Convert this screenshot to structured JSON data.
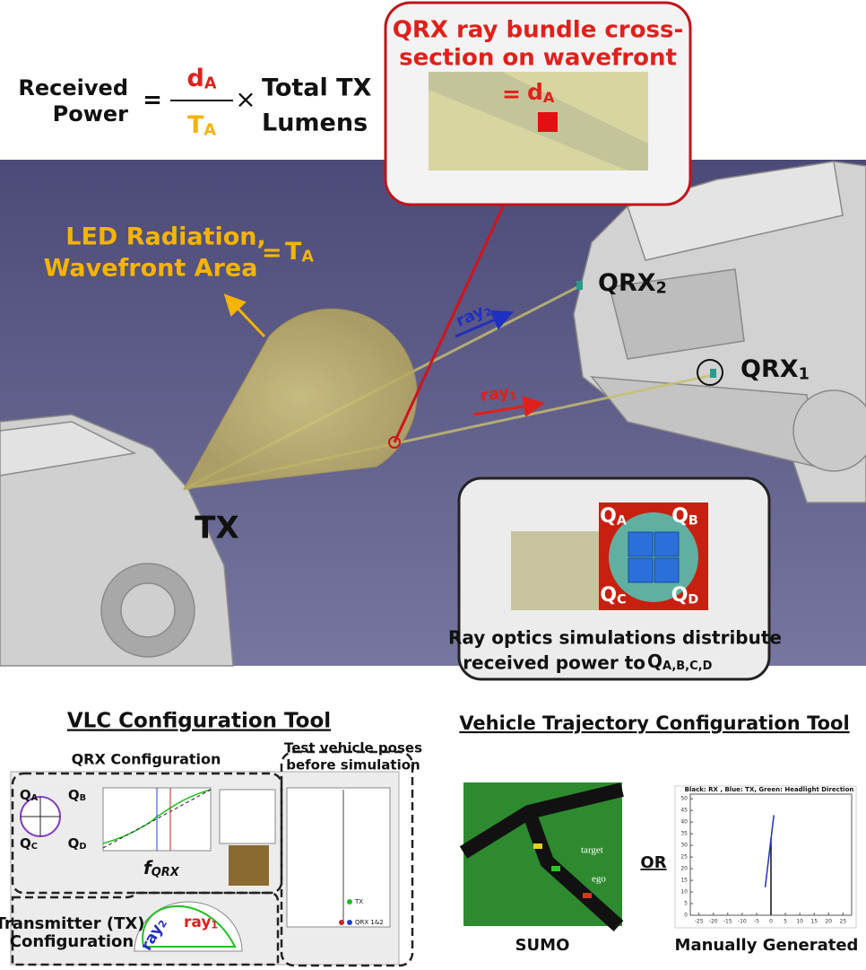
{
  "formula": {
    "lhs": [
      "Received",
      "Power"
    ],
    "equals": "=",
    "numerator": {
      "main": "d",
      "sub": "A"
    },
    "denominator": {
      "main": "T",
      "sub": "A"
    },
    "times": "×",
    "rhs": [
      "Total TX",
      "Lumens"
    ]
  },
  "callout": {
    "title": [
      "QRX ray bundle cross-",
      "section on wavefront"
    ],
    "equals": "= ",
    "label": {
      "main": "d",
      "sub": "A"
    }
  },
  "scene": {
    "led_label": [
      "LED Radiation,",
      "Wavefront Area"
    ],
    "led_equals": "= ",
    "led_symbol": {
      "main": "T",
      "sub": "A"
    },
    "qrx2": {
      "main": "QRX",
      "sub": "2"
    },
    "qrx1": {
      "main": "QRX",
      "sub": "1"
    },
    "ray2": {
      "main": "ray",
      "sub": "2"
    },
    "ray1": {
      "main": "ray",
      "sub": "1"
    },
    "tx": "TX"
  },
  "inset": {
    "quadrants": [
      {
        "main": "Q",
        "sub": "A"
      },
      {
        "main": "Q",
        "sub": "B"
      },
      {
        "main": "Q",
        "sub": "C"
      },
      {
        "main": "Q",
        "sub": "D"
      }
    ],
    "caption": [
      "Ray optics simulations distribute",
      "received power to "
    ],
    "caption_symbol": {
      "main": "Q",
      "sub": "A,B,C,D"
    }
  },
  "vlc_tool": {
    "title": "VLC Configuration Tool",
    "qrx_label": "QRX Configuration",
    "poses_label": [
      "Test vehicle poses",
      "before simulation"
    ],
    "tx_label": [
      "Transmitter (TX)",
      "Configuration"
    ],
    "fqrx": {
      "main": "f",
      "sub": "QRX"
    },
    "quadrants": [
      {
        "main": "Q",
        "sub": "A"
      },
      {
        "main": "Q",
        "sub": "B"
      },
      {
        "main": "Q",
        "sub": "C"
      },
      {
        "main": "Q",
        "sub": "D"
      }
    ],
    "ray1": {
      "main": "ray",
      "sub": "1"
    },
    "ray2": {
      "main": "ray",
      "sub": "2"
    },
    "pose_tags": [
      "TX",
      "QRX 1&2"
    ]
  },
  "trajectory_tool": {
    "title": "Vehicle Trajectory Configuration Tool",
    "sumo_label": "SUMO",
    "or": "OR",
    "manual_label": "Manually Generated",
    "sumo_tags": [
      "target",
      "ego"
    ],
    "plot": {
      "title": "Black: RX , Blue: TX, Green: Headlight Direction",
      "xlim": [
        -28,
        28
      ],
      "ylim": [
        0,
        52
      ],
      "xticks": [
        -25,
        -20,
        -15,
        -10,
        -5,
        0,
        5,
        10,
        15,
        20,
        25
      ],
      "yticks": [
        0,
        5,
        10,
        15,
        20,
        25,
        30,
        35,
        40,
        45,
        50
      ],
      "rx_path": {
        "x": [
          0,
          0
        ],
        "y": [
          0,
          33
        ]
      },
      "tx_path": {
        "x": [
          -2,
          1
        ],
        "y": [
          12,
          43
        ]
      }
    }
  }
}
